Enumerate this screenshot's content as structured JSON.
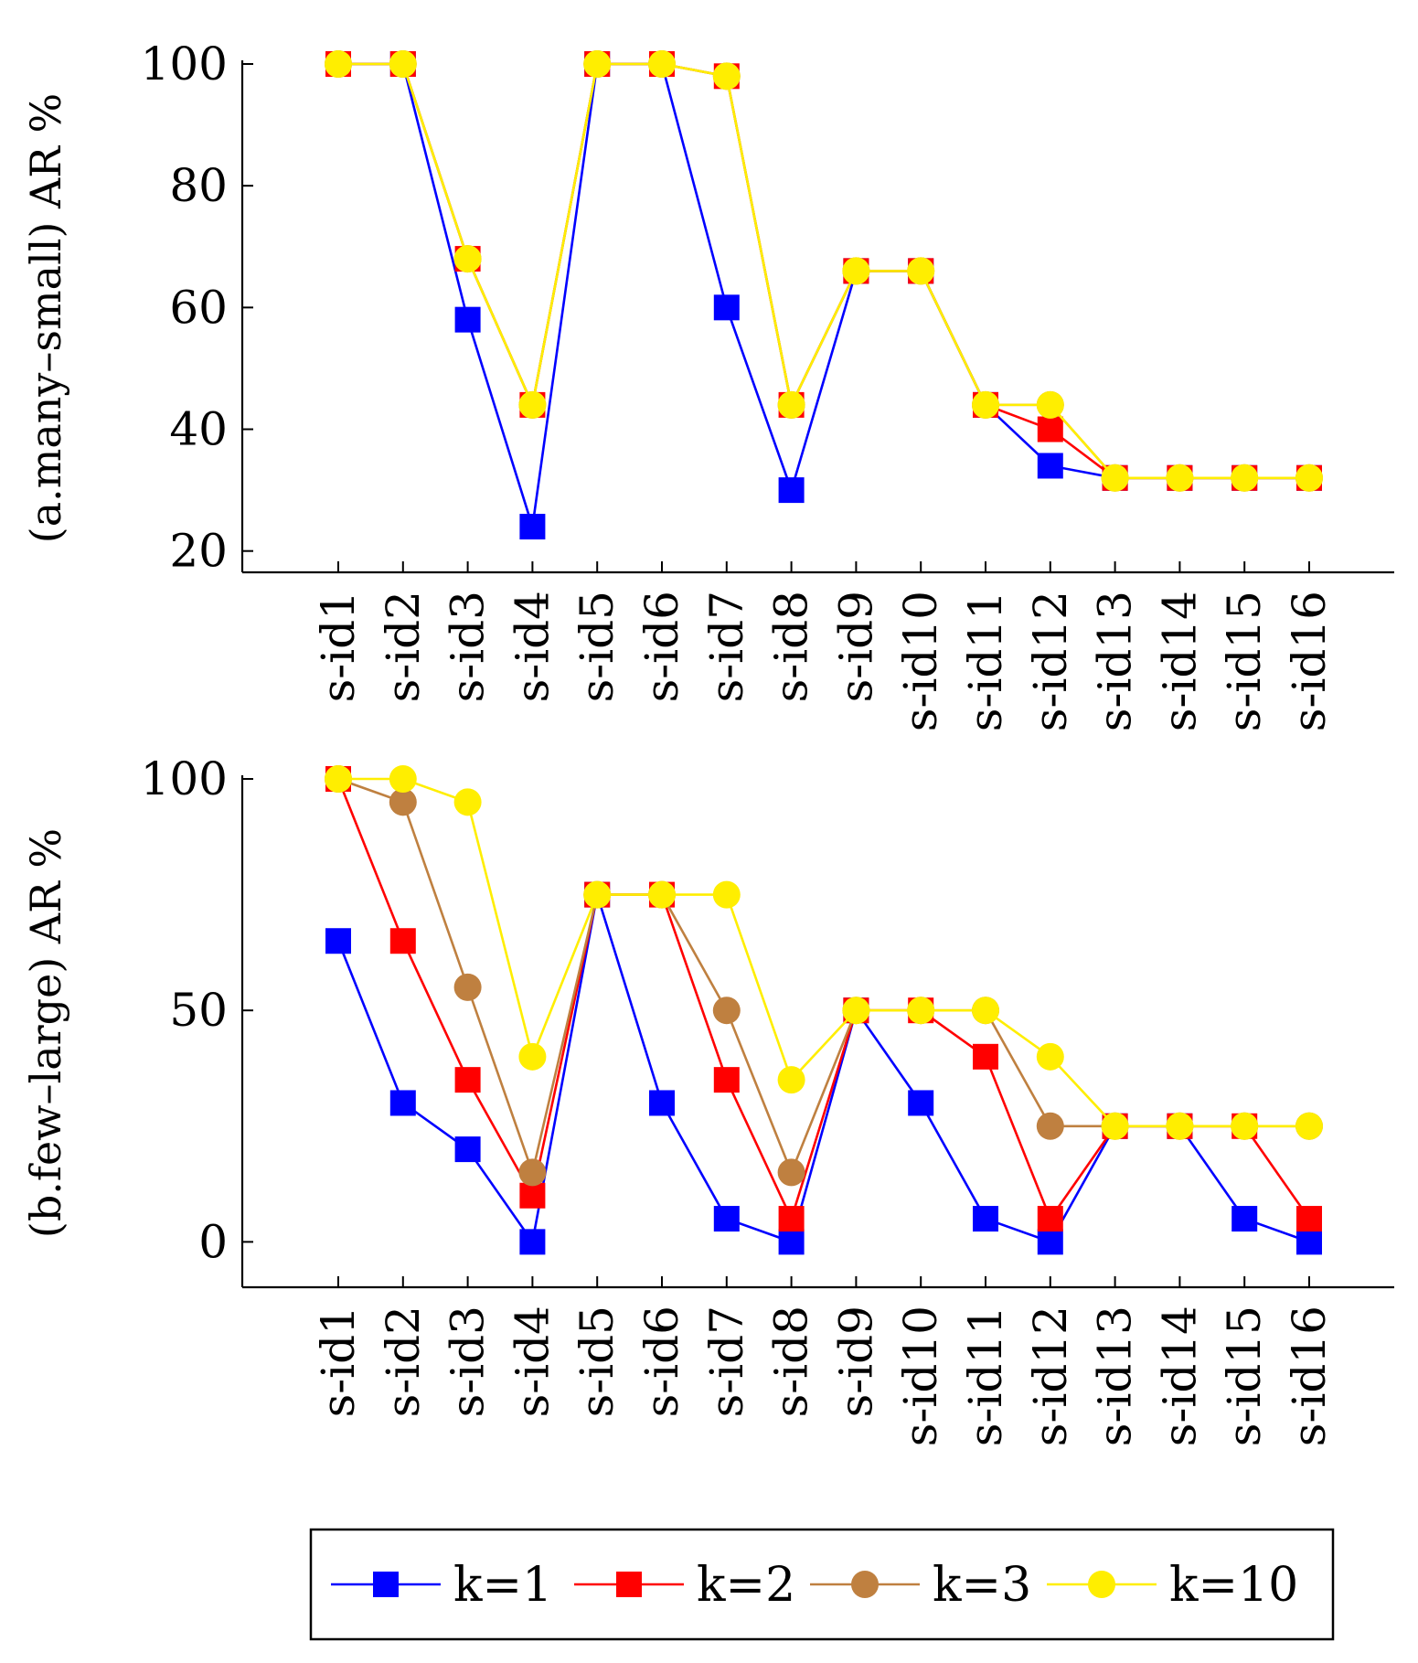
{
  "chart_data": [
    {
      "type": "line",
      "ylabel": "(a.many–small) AR %",
      "categories": [
        "s-id1",
        "s-id2",
        "s-id3",
        "s-id4",
        "s-id5",
        "s-id6",
        "s-id7",
        "s-id8",
        "s-id9",
        "s-id10",
        "s-id11",
        "s-id12",
        "s-id13",
        "s-id14",
        "s-id15",
        "s-id16"
      ],
      "yticks": [
        20,
        40,
        60,
        80,
        100
      ],
      "ylim": [
        16.5,
        100
      ],
      "series": [
        {
          "name": "k=1",
          "values": [
            100,
            100,
            58,
            24,
            100,
            100,
            60,
            30,
            66,
            66,
            44,
            34,
            32,
            32,
            32,
            32
          ]
        },
        {
          "name": "k=2",
          "values": [
            100,
            100,
            68,
            44,
            100,
            100,
            98,
            44,
            66,
            66,
            44,
            40,
            32,
            32,
            32,
            32
          ]
        },
        {
          "name": "k=3",
          "values": [
            100,
            100,
            68,
            44,
            100,
            100,
            98,
            44,
            66,
            66,
            44,
            44,
            32,
            32,
            32,
            32
          ]
        },
        {
          "name": "k=10",
          "values": [
            100,
            100,
            68,
            44,
            100,
            100,
            98,
            44,
            66,
            66,
            44,
            44,
            32,
            32,
            32,
            32
          ]
        }
      ]
    },
    {
      "type": "line",
      "ylabel": "(b.few–large) AR %",
      "categories": [
        "s-id1",
        "s-id2",
        "s-id3",
        "s-id4",
        "s-id5",
        "s-id6",
        "s-id7",
        "s-id8",
        "s-id9",
        "s-id10",
        "s-id11",
        "s-id12",
        "s-id13",
        "s-id14",
        "s-id15",
        "s-id16"
      ],
      "yticks": [
        0,
        50,
        100
      ],
      "ylim": [
        -9.8,
        100
      ],
      "series": [
        {
          "name": "k=1",
          "values": [
            65,
            30,
            20,
            0,
            75,
            30,
            5,
            0,
            50,
            30,
            5,
            0,
            25,
            25,
            5,
            0
          ]
        },
        {
          "name": "k=2",
          "values": [
            100,
            65,
            35,
            10,
            75,
            75,
            35,
            5,
            50,
            50,
            40,
            5,
            25,
            25,
            25,
            5
          ]
        },
        {
          "name": "k=3",
          "values": [
            100,
            95,
            55,
            15,
            75,
            75,
            50,
            15,
            50,
            50,
            50,
            25,
            25,
            25,
            25,
            25
          ]
        },
        {
          "name": "k=10",
          "values": [
            100,
            100,
            95,
            40,
            75,
            75,
            75,
            35,
            50,
            50,
            50,
            40,
            25,
            25,
            25,
            25
          ]
        }
      ]
    }
  ],
  "legend": {
    "position": "bottom",
    "entries": [
      {
        "label": "k=1",
        "color": "#0000ff",
        "marker": "square"
      },
      {
        "label": "k=2",
        "color": "#ff0000",
        "marker": "square"
      },
      {
        "label": "k=3",
        "color": "#bf8040",
        "marker": "circle"
      },
      {
        "label": "k=10",
        "color": "#ffee00",
        "marker": "circle"
      }
    ]
  }
}
